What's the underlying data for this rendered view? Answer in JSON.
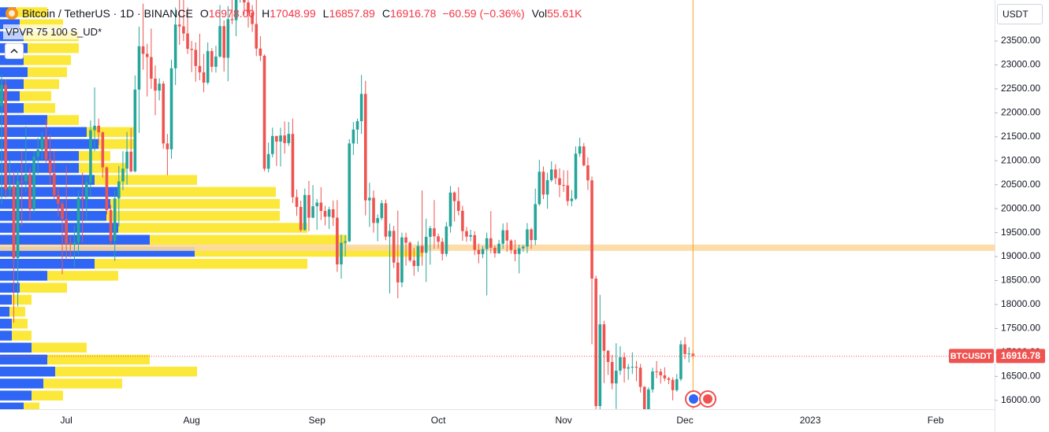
{
  "chart_data": {
    "type": "candlestick",
    "header": {
      "symbol": "Bitcoin / TetherUS · 1D · BINANCE",
      "o_label": "O",
      "o": "16978.00",
      "h_label": "H",
      "l_label": "L",
      "c_label": "C",
      "change": "−60.59 (−0.36%)",
      "vol_label": "Vol",
      "vol": "55.61K"
    },
    "indicator_label": "VPVR 75 100 S_UD*",
    "currency": "USDT",
    "last_price_label": "BTCUSDT",
    "categories": [
      null,
      null,
      null,
      null,
      null,
      null,
      null,
      null,
      null,
      null,
      null,
      null,
      null,
      null,
      null,
      null,
      "Jul",
      null,
      null,
      null,
      null,
      null,
      null,
      null,
      null,
      null,
      null,
      null,
      null,
      null,
      null,
      null,
      null,
      null,
      null,
      null,
      null,
      null,
      null,
      null,
      null,
      null,
      null,
      null,
      null,
      null,
      null,
      "Aug",
      null,
      null,
      null,
      null,
      null,
      null,
      null,
      null,
      null,
      null,
      null,
      null,
      null,
      null,
      null,
      null,
      null,
      null,
      null,
      null,
      null,
      null,
      null,
      null,
      null,
      null,
      null,
      null,
      null,
      null,
      "Sep",
      null,
      null,
      null,
      null,
      null,
      null,
      null,
      null,
      null,
      null,
      null,
      null,
      null,
      null,
      null,
      null,
      null,
      null,
      null,
      null,
      null,
      null,
      null,
      null,
      null,
      null,
      null,
      null,
      null,
      "Oct",
      null,
      null,
      null,
      null,
      null,
      null,
      null,
      null,
      null,
      null,
      null,
      null,
      null,
      null,
      null,
      null,
      null,
      null,
      null,
      null,
      null,
      null,
      null,
      null,
      null,
      null,
      null,
      null,
      null,
      null,
      "Nov",
      null,
      null,
      null,
      null,
      null,
      null,
      null,
      null,
      null,
      null,
      null,
      null,
      null,
      null,
      null,
      null,
      null,
      null,
      null,
      null,
      null,
      null,
      null,
      null,
      null,
      null,
      null,
      null,
      null,
      "Dec",
      null,
      null,
      null,
      null,
      null,
      null,
      null,
      null,
      null,
      null,
      null,
      null,
      null,
      null,
      null,
      null,
      null,
      null,
      null,
      null,
      null,
      null,
      null,
      null,
      null,
      null,
      null,
      null,
      null,
      null,
      "2023",
      null,
      null,
      null,
      null,
      null,
      null,
      null,
      null,
      null,
      null,
      null,
      null,
      null,
      null,
      null,
      null,
      null,
      null,
      null,
      null,
      null,
      null,
      null,
      null,
      null,
      null,
      null,
      null,
      null,
      null,
      "Feb",
      null,
      null,
      null,
      null,
      null,
      null,
      null,
      null,
      null,
      null,
      null,
      null,
      null,
      null
    ],
    "open": [
      22136,
      22583,
      20401,
      20468,
      18970,
      20574,
      20573,
      20719,
      19987,
      21085,
      21231,
      21502,
      21027,
      20735,
      20280,
      20104,
      19785,
      19269,
      19243,
      19297,
      20231,
      20190,
      20548,
      21637,
      21731,
      21592,
      20861,
      19970,
      19329,
      20212,
      20569,
      20836,
      21190,
      20779,
      22485,
      23389,
      23231,
      23164,
      22714,
      22465,
      22609,
      21361,
      21239,
      22930,
      23843,
      23804,
      23656,
      23336,
      23314,
      22978,
      22846,
      22630,
      23289,
      22961,
      23175,
      23810,
      23149,
      23954,
      23934,
      24403,
      24441,
      24305,
      24094,
      23854,
      23342,
      23191,
      20834,
      21140,
      21517,
      21400,
      21528,
      21368,
      21560,
      20241,
      20037,
      19555,
      20285,
      19811,
      20050,
      20127,
      19952,
      19832,
      19986,
      19812,
      18837,
      19290,
      19319,
      21361,
      21651,
      21826,
      22395,
      20173,
      20227,
      19701,
      19803,
      20113,
      19416,
      19537,
      18875,
      18461,
      19401,
      19289,
      18920,
      18803,
      19222,
      19079,
      19412,
      19591,
      19423,
      19310,
      19056,
      19629,
      20337,
      20158,
      19955,
      19531,
      19417,
      19446,
      19141,
      19051,
      19157,
      19382,
      19185,
      19067,
      19268,
      19550,
      19334,
      19139,
      19053,
      19172,
      19208,
      19567,
      19345,
      20095,
      20771,
      20295,
      20595,
      20818,
      20635,
      20495,
      20485,
      20159,
      20209,
      21148,
      21300,
      20905,
      20591,
      18541,
      15880,
      17586,
      17034,
      16800,
      16353,
      16619,
      16900,
      16663,
      16689,
      16700,
      16681,
      16280,
      15781,
      16226,
      16603,
      16598,
      16522,
      16458,
      16428,
      16212,
      16442,
      17168,
      16967,
      16978,
      null,
      null,
      null,
      null,
      null,
      null,
      null,
      null,
      null,
      null,
      null,
      null,
      null,
      null,
      null,
      null,
      null,
      null,
      null,
      null,
      null,
      null,
      null,
      null,
      null,
      null,
      null,
      null,
      null,
      null,
      null,
      null,
      null,
      null,
      null,
      null,
      null,
      null,
      null,
      null,
      null,
      null,
      null,
      null,
      null,
      null,
      null,
      null,
      null,
      null,
      null,
      null,
      null,
      null,
      null,
      null,
      null,
      null,
      null,
      null,
      null,
      null,
      null,
      null,
      null,
      null,
      null,
      null,
      null,
      null,
      null,
      null,
      null,
      null
    ],
    "high": [
      22800,
      22700,
      21000,
      20780,
      20800,
      21200,
      21720,
      20860,
      21200,
      21480,
      21600,
      21870,
      21540,
      21200,
      20420,
      20170,
      20880,
      19420,
      19650,
      20380,
      20750,
      20670,
      21840,
      22530,
      21880,
      21610,
      20880,
      20080,
      20380,
      20890,
      21200,
      21600,
      21680,
      22780,
      23800,
      24280,
      23440,
      23760,
      22990,
      22720,
      22660,
      21560,
      23110,
      24200,
      24440,
      24670,
      24200,
      23500,
      23470,
      23650,
      23230,
      23470,
      23350,
      23400,
      24250,
      23930,
      24230,
      24920,
      24450,
      24890,
      25210,
      25000,
      24250,
      24450,
      23600,
      23220,
      21380,
      21690,
      21520,
      21690,
      21820,
      21810,
      21880,
      20400,
      20170,
      20420,
      20580,
      20490,
      20200,
      20450,
      20060,
      20040,
      20170,
      20180,
      19460,
      19450,
      21450,
      21810,
      21880,
      22790,
      22670,
      20540,
      20380,
      19880,
      20180,
      20190,
      19690,
      19640,
      19960,
      19500,
      19500,
      19320,
      19180,
      19320,
      20380,
      19790,
      19640,
      20180,
      19480,
      19390,
      19720,
      20470,
      20360,
      20450,
      20060,
      19620,
      19560,
      19530,
      19270,
      19220,
      19500,
      19950,
      19230,
      19350,
      19690,
      19710,
      19360,
      19350,
      19250,
      19250,
      19700,
      19600,
      20420,
      21020,
      20880,
      20750,
      20990,
      20930,
      20840,
      20800,
      20800,
      20390,
      21300,
      21480,
      21370,
      21070,
      20670,
      18600,
      18200,
      17660,
      17050,
      16950,
      17190,
      17130,
      17000,
      16760,
      17000,
      16820,
      16760,
      16300,
      16270,
      16680,
      16820,
      16660,
      16690,
      16490,
      16480,
      16550,
      17250,
      17320,
      17110,
      17048.99,
      null,
      null,
      null,
      null,
      null,
      null,
      null,
      null,
      null,
      null,
      null,
      null,
      null,
      null,
      null,
      null,
      null,
      null,
      null,
      null,
      null,
      null,
      null,
      null,
      null,
      null,
      null,
      null,
      null,
      null,
      null,
      null,
      null,
      null,
      null,
      null,
      null,
      null,
      null,
      null,
      null,
      null,
      null,
      null,
      null,
      null,
      null,
      null,
      null,
      null,
      null,
      null,
      null,
      null,
      null,
      null,
      null,
      null,
      null,
      null,
      null,
      null,
      null,
      null,
      null,
      null,
      null,
      null,
      null,
      null,
      null,
      null,
      null,
      null
    ],
    "low": [
      20100,
      20230,
      20250,
      17622,
      17960,
      19640,
      20350,
      19770,
      19900,
      20720,
      21030,
      20960,
      20500,
      20200,
      19850,
      18630,
      18960,
      18980,
      18780,
      19040,
      19300,
      19760,
      20240,
      21200,
      21330,
      20650,
      19880,
      19240,
      18910,
      19630,
      20390,
      20500,
      20760,
      20760,
      21580,
      22900,
      22340,
      22500,
      21950,
      22260,
      21250,
      20700,
      21040,
      22580,
      23420,
      23500,
      23230,
      22850,
      22650,
      22680,
      22430,
      22590,
      22850,
      22840,
      23150,
      22860,
      22660,
      23850,
      23600,
      24300,
      24050,
      23780,
      23690,
      23180,
      23080,
      20780,
      20760,
      21070,
      20890,
      20880,
      21150,
      21310,
      20120,
      19850,
      19520,
      19540,
      19530,
      19800,
      19560,
      19760,
      19650,
      19580,
      19640,
      18680,
      18540,
      19000,
      19300,
      21120,
      21350,
      21560,
      19860,
      19620,
      19500,
      19320,
      19760,
      19340,
      18230,
      18760,
      18130,
      18360,
      18810,
      18880,
      18600,
      18680,
      18810,
      18470,
      18830,
      19160,
      19160,
      18920,
      19000,
      19500,
      19730,
      19860,
      19330,
      19310,
      19320,
      19030,
      18860,
      18970,
      18190,
      19070,
      18980,
      19060,
      19160,
      19100,
      19060,
      18900,
      18650,
      19100,
      19070,
      19160,
      19240,
      20060,
      20200,
      20000,
      20560,
      20510,
      20240,
      20350,
      20060,
      20050,
      20180,
      21080,
      20880,
      20390,
      17170,
      15590,
      15750,
      16360,
      16530,
      16230,
      15820,
      16530,
      16370,
      16430,
      16550,
      16400,
      16160,
      15480,
      15620,
      16160,
      16460,
      16350,
      16400,
      16340,
      16000,
      16180,
      16400,
      16860,
      16790,
      16857.89,
      null,
      null,
      null,
      null,
      null,
      null,
      null,
      null,
      null,
      null,
      null,
      null,
      null,
      null,
      null,
      null,
      null,
      null,
      null,
      null,
      null,
      null,
      null,
      null,
      null,
      null,
      null,
      null,
      null,
      null,
      null,
      null,
      null,
      null,
      null,
      null,
      null,
      null,
      null,
      null,
      null,
      null,
      null,
      null,
      null,
      null,
      null,
      null,
      null,
      null,
      null,
      null,
      null,
      null,
      null,
      null,
      null,
      null,
      null,
      null,
      null,
      null,
      null,
      null,
      null,
      null,
      null,
      null,
      null,
      null,
      null,
      null,
      null,
      null
    ],
    "close": [
      22583,
      20401,
      20468,
      18970,
      20574,
      20573,
      20719,
      19987,
      21085,
      21231,
      21502,
      21027,
      20735,
      20280,
      20104,
      19785,
      19269,
      19243,
      19297,
      20231,
      20190,
      20548,
      21637,
      21731,
      21592,
      20861,
      19970,
      19329,
      20212,
      20569,
      20836,
      21190,
      20779,
      22485,
      23389,
      23231,
      23164,
      22714,
      22465,
      22609,
      21361,
      21239,
      22930,
      23843,
      23804,
      23656,
      23336,
      23314,
      22978,
      22846,
      22630,
      23289,
      22961,
      23175,
      23810,
      23149,
      23954,
      23934,
      24403,
      24441,
      24305,
      24094,
      23854,
      23342,
      23191,
      20834,
      21140,
      21517,
      21400,
      21528,
      21368,
      21560,
      20241,
      20037,
      19555,
      20285,
      19811,
      20050,
      20127,
      19952,
      19832,
      19986,
      19812,
      18837,
      19290,
      19319,
      21361,
      21651,
      21826,
      22395,
      20173,
      20227,
      19701,
      19803,
      20113,
      19416,
      19537,
      18875,
      18461,
      19401,
      19289,
      18920,
      18803,
      19222,
      19079,
      19412,
      19591,
      19423,
      19310,
      19056,
      19629,
      20337,
      20158,
      19955,
      19531,
      19417,
      19446,
      19141,
      19051,
      19157,
      19382,
      19185,
      19067,
      19268,
      19550,
      19334,
      19139,
      19053,
      19172,
      19208,
      19567,
      19345,
      20095,
      20771,
      20295,
      20595,
      20818,
      20635,
      20495,
      20485,
      20159,
      20209,
      21148,
      21300,
      20905,
      20591,
      18541,
      15880,
      17586,
      17034,
      16800,
      16353,
      16619,
      16900,
      16663,
      16689,
      16700,
      16681,
      16280,
      15781,
      16226,
      16603,
      16598,
      16522,
      16458,
      16428,
      16212,
      16442,
      17168,
      16967,
      16977,
      16916.78,
      null,
      null,
      null,
      null,
      null,
      null,
      null,
      null,
      null,
      null,
      null,
      null,
      null,
      null,
      null,
      null,
      null,
      null,
      null,
      null,
      null,
      null,
      null,
      null,
      null,
      null,
      null,
      null,
      null,
      null,
      null,
      null,
      null,
      null,
      null,
      null,
      null,
      null,
      null,
      null,
      null,
      null,
      null,
      null,
      null,
      null,
      null,
      null,
      null,
      null,
      null,
      null,
      null,
      null,
      null,
      null,
      null,
      null,
      null,
      null,
      null,
      null,
      null,
      null,
      null,
      null,
      null,
      null,
      null,
      null,
      null,
      null,
      null,
      null
    ],
    "up_color": "#26a69a",
    "down_color": "#ef5350",
    "ylim": [
      15815,
      24355
    ],
    "yticks": [
      {
        "value": 16000,
        "label": "16000.00"
      },
      {
        "value": 16500,
        "label": "16500.00"
      },
      {
        "value": 17000,
        "label": "17000.00"
      },
      {
        "value": 17500,
        "label": "17500.00"
      },
      {
        "value": 18000,
        "label": "18000.00"
      },
      {
        "value": 18500,
        "label": "18500.00"
      },
      {
        "value": 19000,
        "label": "19000.00"
      },
      {
        "value": 19500,
        "label": "19500.00"
      },
      {
        "value": 20000,
        "label": "20000.00"
      },
      {
        "value": 20500,
        "label": "20500.00"
      },
      {
        "value": 21000,
        "label": "21000.00"
      },
      {
        "value": 21500,
        "label": "21500.00"
      },
      {
        "value": 22000,
        "label": "22000.00"
      },
      {
        "value": 22500,
        "label": "22500.00"
      },
      {
        "value": 23000,
        "label": "23000.00"
      },
      {
        "value": 23500,
        "label": "23500.00"
      }
    ],
    "grid": false,
    "volume_profile": {
      "price": [
        24100,
        23850,
        23600,
        23350,
        23100,
        22850,
        22600,
        22350,
        22100,
        21850,
        21600,
        21350,
        21100,
        20850,
        20600,
        20350,
        20100,
        19850,
        19600,
        19350,
        19100,
        18850,
        18600,
        18350,
        18100,
        17850,
        17600,
        17350,
        17100,
        16850,
        16600,
        16350,
        16100,
        15850
      ],
      "up_volume": [
        20,
        25,
        30,
        35,
        30,
        35,
        30,
        25,
        30,
        60,
        110,
        125,
        100,
        100,
        120,
        150,
        140,
        135,
        150,
        190,
        247,
        120,
        60,
        25,
        15,
        12,
        15,
        15,
        40,
        60,
        70,
        55,
        40,
        30
      ],
      "down_volume": [
        40,
        55,
        70,
        65,
        60,
        50,
        45,
        40,
        40,
        40,
        60,
        45,
        40,
        60,
        130,
        200,
        215,
        220,
        240,
        250,
        290,
        270,
        90,
        60,
        25,
        20,
        20,
        25,
        70,
        130,
        180,
        100,
        40,
        20
      ],
      "up_color": "#2f66f6",
      "down_color": "#fce83a",
      "poc": 19185,
      "poc_color": "#fcd9a0"
    }
  }
}
